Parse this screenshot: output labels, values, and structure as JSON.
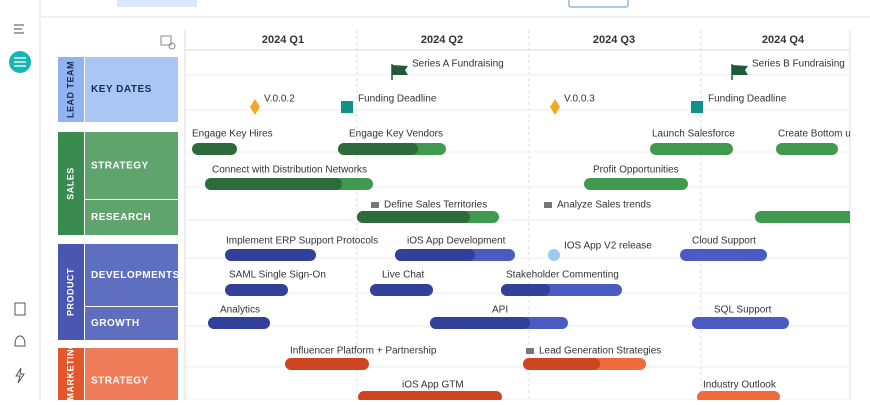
{
  "header": {
    "quarters": [
      "2024 Q1",
      "2024 Q2",
      "2024 Q3",
      "2024 Q4"
    ]
  },
  "groups": [
    {
      "label": "LEAD TEAM",
      "rows": [
        "KEY DATES"
      ]
    },
    {
      "label": "SALES",
      "rows": [
        "STRATEGY",
        "RESEARCH"
      ]
    },
    {
      "label": "PRODUCT",
      "rows": [
        "DEVELOPMENTS",
        "GROWTH"
      ]
    },
    {
      "label": "MARKETING",
      "rows": [
        "STRATEGY"
      ]
    }
  ],
  "items": [
    {
      "label": "Series A Fundraising"
    },
    {
      "label": "Series B Fundraising"
    },
    {
      "label": "V.0.0.2"
    },
    {
      "label": "Funding Deadline"
    },
    {
      "label": "V.0.0.3"
    },
    {
      "label": "Funding Deadline"
    },
    {
      "label": "Engage Key Hires"
    },
    {
      "label": "Engage Key Vendors"
    },
    {
      "label": "Launch Salesforce"
    },
    {
      "label": "Create Bottom u"
    },
    {
      "label": "Connect with Distribution Networks"
    },
    {
      "label": "Profit Opportunities"
    },
    {
      "label": "Define Sales Territories"
    },
    {
      "label": "Analyze Sales trends"
    },
    {
      "label": "Implement ERP Support Protocols"
    },
    {
      "label": "iOS App Development"
    },
    {
      "label": "IOS App V2 release"
    },
    {
      "label": "Cloud Support"
    },
    {
      "label": "SAML Single Sign-On"
    },
    {
      "label": "Live Chat"
    },
    {
      "label": "Stakeholder Commenting"
    },
    {
      "label": "Analytics"
    },
    {
      "label": "API"
    },
    {
      "label": "SQL Support"
    },
    {
      "label": "Influencer Platform + Partnership"
    },
    {
      "label": "Lead Generation Strategies"
    },
    {
      "label": "iOS App GTM"
    },
    {
      "label": "Industry Outlook"
    }
  ]
}
